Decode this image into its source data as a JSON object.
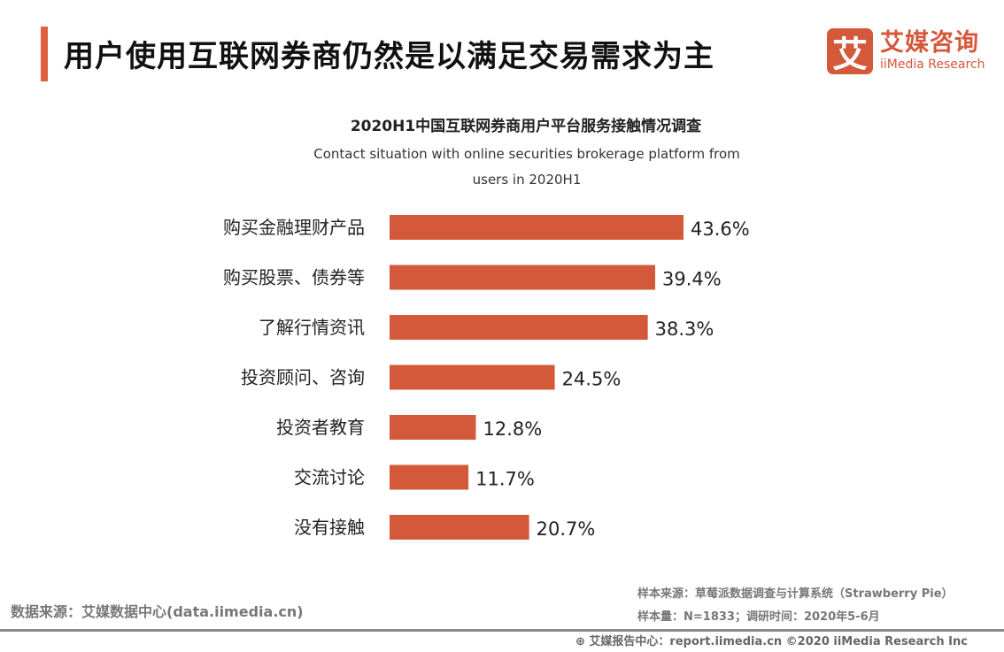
{
  "page_title": "用户使用互联网券商仍然是以满足交易需求为主",
  "logo": {
    "mark": "艾",
    "cn": "艾媒咨询",
    "en": "iiMedia Research",
    "color": "#d4583a"
  },
  "chart_data": {
    "type": "bar",
    "orientation": "horizontal",
    "title": "2020H1中国互联网券商用户平台服务接触情况调查",
    "subtitle": "Contact situation with  online securities brokerage platform from users in 2020H1",
    "categories": [
      "购买金融理财产品",
      "购买股票、债券等",
      "了解行情资讯",
      "投资顾问、咨询",
      "投资者教育",
      "交流讨论",
      "没有接触"
    ],
    "values": [
      43.6,
      39.4,
      38.3,
      24.5,
      12.8,
      11.7,
      20.7
    ],
    "value_labels": [
      "43.6%",
      "39.4%",
      "38.3%",
      "24.5%",
      "12.8%",
      "11.7%",
      "20.7%"
    ],
    "unit": "%",
    "bar_color": "#d4583a",
    "grid": false,
    "legend": "none"
  },
  "footer": {
    "source": "数据来源：艾媒数据中心(data.iimedia.cn)",
    "sample_source": "样本来源：草莓派数据调查与计算系统（Strawberry Pie）",
    "sample_size": "样本量：N=1833；调研时间：2020年5-6月",
    "report_center": "艾媒报告中心：report.iimedia.cn   ©2020  iiMedia Research  Inc"
  }
}
